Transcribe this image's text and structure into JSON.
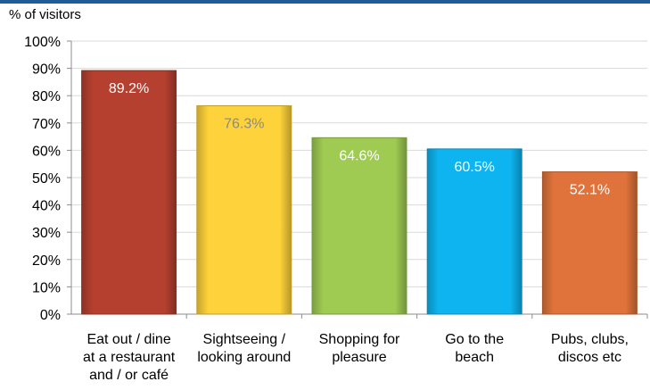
{
  "chart_data": {
    "type": "bar",
    "ylabel": "% of visitors",
    "ylim": [
      0,
      100
    ],
    "yticks": [
      "0%",
      "10%",
      "20%",
      "30%",
      "40%",
      "50%",
      "60%",
      "70%",
      "80%",
      "90%",
      "100%"
    ],
    "grid": true,
    "categories": [
      [
        "Eat out / dine",
        "at a restaurant",
        "and / or café"
      ],
      [
        "Sightseeing /",
        "looking around"
      ],
      [
        "Shopping for",
        "pleasure"
      ],
      [
        "Go to the",
        "beach"
      ],
      [
        "Pubs, clubs,",
        "discos etc"
      ]
    ],
    "values": [
      89.2,
      76.3,
      64.6,
      60.5,
      52.1
    ],
    "data_labels": [
      "89.2%",
      "76.3%",
      "64.6%",
      "60.5%",
      "52.1%"
    ],
    "colors": [
      "#b5402f",
      "#fdd23a",
      "#9fcb52",
      "#0db4f0",
      "#e0733b"
    ],
    "label_colors": [
      "#ffffff",
      "#8a8a8a",
      "#ffffff",
      "#ffffff",
      "#ffffff"
    ]
  }
}
